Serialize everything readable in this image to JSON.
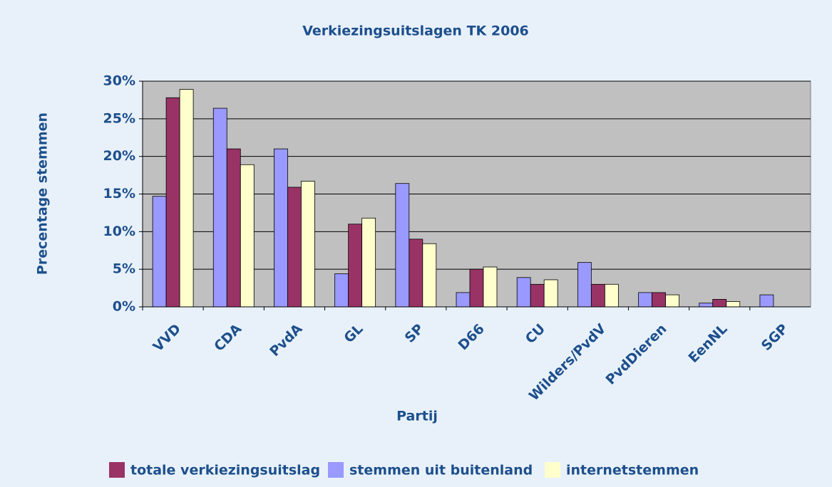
{
  "chart_data": {
    "type": "bar",
    "title": "Verkiezingsuitslagen TK 2006",
    "x_label": "Partij",
    "y_label": "Precentage stemmen",
    "categories": [
      "VVD",
      "CDA",
      "PvdA",
      "GL",
      "SP",
      "D66",
      "CU",
      "Wilders/PvdV",
      "PvdDieren",
      "EenNL",
      "SGP"
    ],
    "series": [
      {
        "name": "stemmen uit buitenland",
        "color": "#9999ff",
        "values": [
          14.7,
          26.4,
          21.0,
          4.4,
          16.4,
          1.9,
          3.9,
          5.9,
          1.9,
          0.5,
          1.6
        ]
      },
      {
        "name": "totale verkiezingsuitslag",
        "color": "#993366",
        "values": [
          27.8,
          21.0,
          15.9,
          11.0,
          9.0,
          5.0,
          3.0,
          3.0,
          1.9,
          1.0,
          null
        ]
      },
      {
        "name": "internetstemmen",
        "color": "#ffffcc",
        "values": [
          28.9,
          18.9,
          16.7,
          11.8,
          8.4,
          5.3,
          3.6,
          3.0,
          1.6,
          0.7,
          null
        ]
      }
    ],
    "ylim": [
      0,
      30
    ],
    "yticks": [
      {
        "value": 0,
        "label": "0%"
      },
      {
        "value": 5,
        "label": "5%"
      },
      {
        "value": 10,
        "label": "10%"
      },
      {
        "value": 15,
        "label": "15%"
      },
      {
        "value": 20,
        "label": "20%"
      },
      {
        "value": 25,
        "label": "25%"
      },
      {
        "value": 30,
        "label": "30%"
      }
    ],
    "grid": true
  }
}
